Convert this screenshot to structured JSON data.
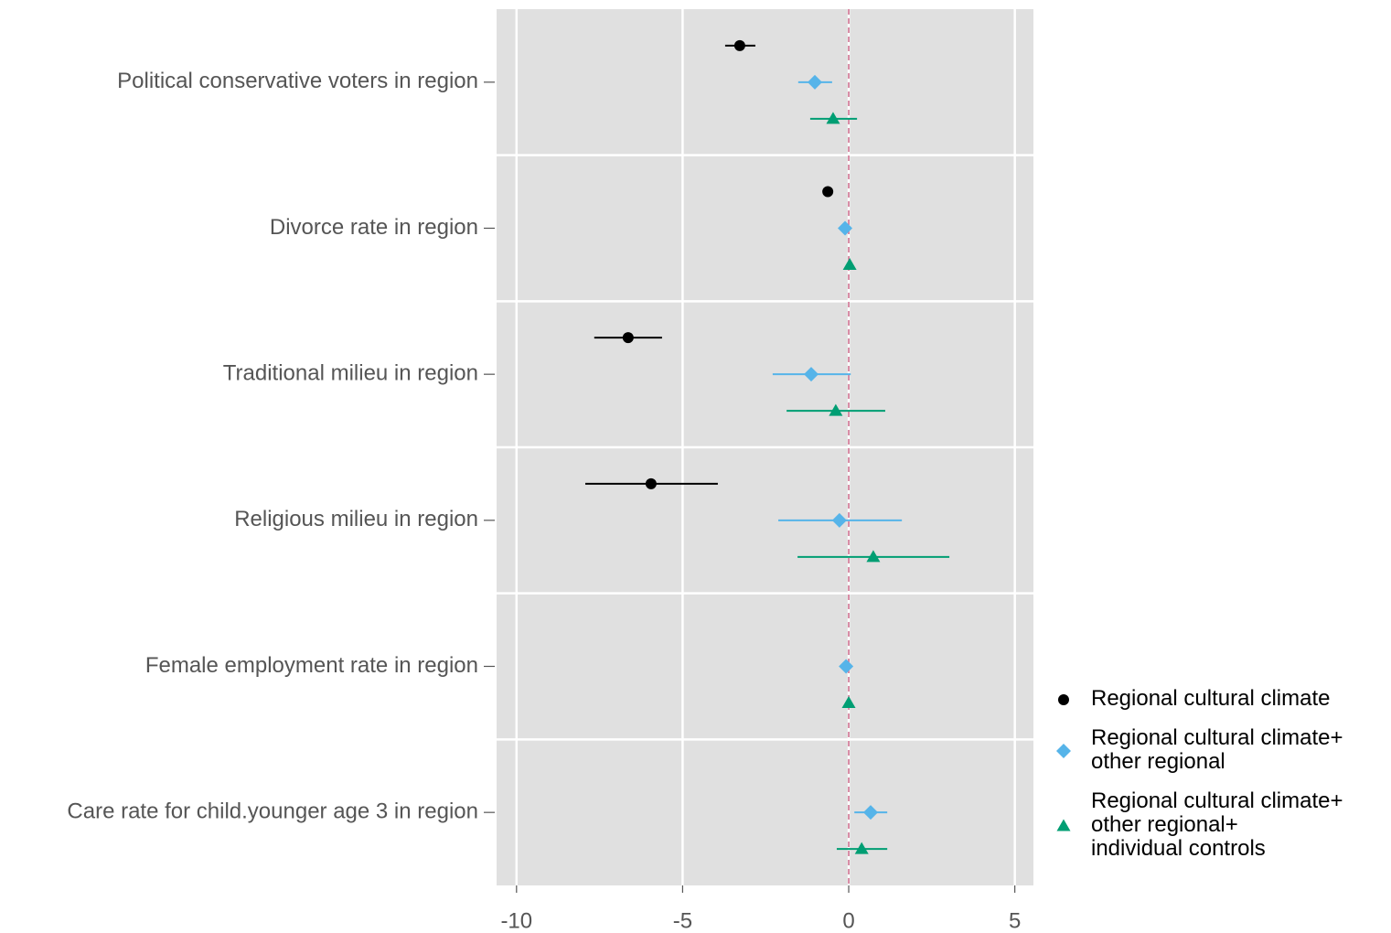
{
  "chart_data": {
    "type": "dot-whisker",
    "categories": [
      "Political conservative voters in region",
      "Divorce rate in region",
      "Traditional milieu in region",
      "Religious milieu in region",
      "Female employment rate in region",
      "Care rate for child.younger age 3 in region"
    ],
    "series": [
      {
        "name": "Regional cultural climate",
        "color": "#000000",
        "marker": "circle",
        "values": [
          -3.28,
          -0.63,
          -6.64,
          -5.95,
          null,
          null
        ],
        "low": [
          -3.72,
          -0.7,
          -7.66,
          -7.93,
          null,
          null
        ],
        "high": [
          -2.81,
          -0.56,
          -5.62,
          -3.94,
          null,
          null
        ]
      },
      {
        "name": "Regional cultural climate+\nother regional",
        "color": "#56b4e9",
        "marker": "diamond",
        "values": [
          -1.02,
          -0.11,
          -1.13,
          -0.28,
          -0.08,
          0.66
        ],
        "low": [
          -1.52,
          -0.18,
          -2.29,
          -2.12,
          -0.14,
          0.17
        ],
        "high": [
          -0.5,
          -0.04,
          0.06,
          1.6,
          -0.02,
          1.16
        ]
      },
      {
        "name": "Regional cultural climate+\nother regional+\nindividual controls",
        "color": "#009e73",
        "marker": "triangle",
        "values": [
          -0.47,
          0.03,
          -0.39,
          0.74,
          0.0,
          0.39
        ],
        "low": [
          -1.16,
          -0.03,
          -1.87,
          -1.54,
          -0.05,
          -0.36
        ],
        "high": [
          0.25,
          0.09,
          1.1,
          3.03,
          0.05,
          1.16
        ]
      }
    ],
    "xlim": [
      -10.6,
      5.56
    ],
    "xticks": [
      -10,
      -5,
      0,
      5
    ],
    "reference_line": 0,
    "reference_color": "#cc6688",
    "panel_color": "#e0e0e0",
    "grid": true
  }
}
